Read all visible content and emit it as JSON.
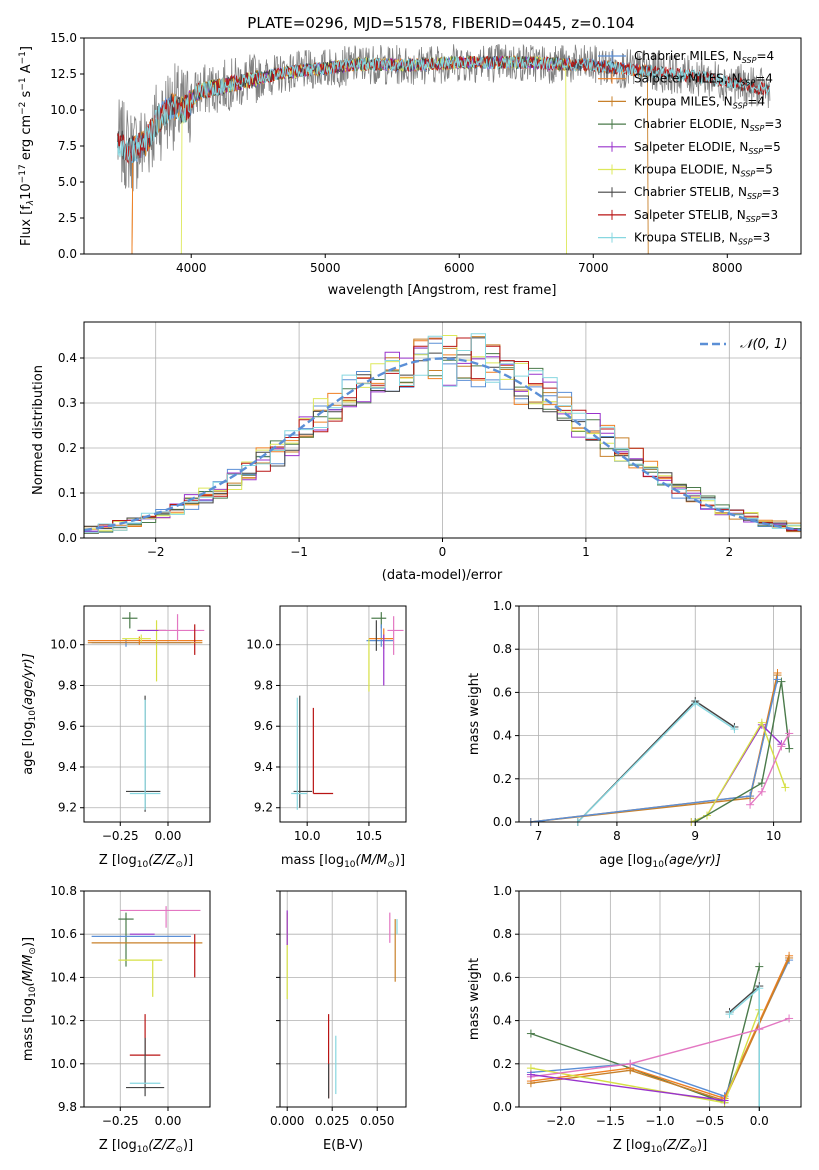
{
  "figure": {
    "title": "PLATE=0296, MJD=51578, FIBERID=0445, z=0.104"
  },
  "colors": {
    "Chabrier MILES": "#5b8fd6",
    "Salpeter MILES": "#f07f22",
    "Kroupa MILES": "#c8802a",
    "Chabrier ELODIE": "#4a7a4a",
    "Salpeter ELODIE": "#9933cc",
    "Kroupa ELODIE": "#dde85a",
    "Chabrier STELIB": "#444444",
    "Salpeter STELIB": "#b81414",
    "Kroupa STELIB": "#87d7e0",
    "Kroupa ELODIE mark": "#d6e045",
    "pink": "#e377c2",
    "data": "#808080"
  },
  "chart_data": [
    {
      "id": "spectrum",
      "type": "line",
      "title": "PLATE=0296, MJD=51578, FIBERID=0445, z=0.104",
      "xlabel": "wavelength [Angstrom, rest frame]",
      "ylabel": "Flux [f_λ10^-17 erg cm^-2 s^-1 A^-1]",
      "xlim": [
        3200,
        8550
      ],
      "ylim": [
        0,
        15
      ],
      "xticks": [
        4000,
        5000,
        6000,
        7000,
        8000
      ],
      "yticks": [
        0.0,
        2.5,
        5.0,
        7.5,
        10.0,
        12.5,
        15.0
      ],
      "grid": false,
      "legend_position": "right",
      "legend": [
        {
          "main": "Chabrier MILES, N",
          "sub": "SSP",
          "tail": "=4",
          "series": "Chabrier MILES"
        },
        {
          "main": "Salpeter MILES, N",
          "sub": "SSP",
          "tail": "=4",
          "series": "Salpeter MILES"
        },
        {
          "main": "Kroupa MILES, N",
          "sub": "SSP",
          "tail": "=4",
          "series": "Kroupa MILES"
        },
        {
          "main": "Chabrier ELODIE, N",
          "sub": "SSP",
          "tail": "=3",
          "series": "Chabrier ELODIE"
        },
        {
          "main": "Salpeter ELODIE, N",
          "sub": "SSP",
          "tail": "=5",
          "series": "Salpeter ELODIE"
        },
        {
          "main": "Kroupa ELODIE, N",
          "sub": "SSP",
          "tail": "=5",
          "series": "Kroupa ELODIE"
        },
        {
          "main": "Chabrier STELIB, N",
          "sub": "SSP",
          "tail": "=3",
          "series": "Chabrier STELIB"
        },
        {
          "main": "Salpeter STELIB, N",
          "sub": "SSP",
          "tail": "=3",
          "series": "Salpeter STELIB"
        },
        {
          "main": "Kroupa STELIB, N",
          "sub": "SSP",
          "tail": "=3",
          "series": "Kroupa STELIB"
        }
      ],
      "continuum": [
        [
          3450,
          7.8
        ],
        [
          3550,
          7.2
        ],
        [
          3650,
          7.6
        ],
        [
          3750,
          9.3
        ],
        [
          3850,
          10.3
        ],
        [
          3950,
          10.0
        ],
        [
          4050,
          11.3
        ],
        [
          4200,
          11.6
        ],
        [
          4400,
          12.0
        ],
        [
          4700,
          12.6
        ],
        [
          5000,
          12.9
        ],
        [
          5300,
          13.2
        ],
        [
          5600,
          13.1
        ],
        [
          6000,
          13.3
        ],
        [
          6500,
          13.3
        ],
        [
          7000,
          13.1
        ],
        [
          7400,
          12.7
        ],
        [
          7800,
          12.3
        ],
        [
          8100,
          11.8
        ],
        [
          8300,
          11.4
        ]
      ],
      "data_range": [
        3450,
        8320
      ]
    },
    {
      "id": "residuals",
      "type": "bar",
      "xlabel": "(data-model)/error",
      "ylabel": "Normed distribution",
      "xlim": [
        -2.5,
        2.5
      ],
      "ylim": [
        0,
        0.48
      ],
      "xticks": [
        -2,
        -1,
        0,
        1,
        2
      ],
      "yticks": [
        0.0,
        0.1,
        0.2,
        0.3,
        0.4
      ],
      "grid": true,
      "legend_position": "top-right",
      "legend": [
        {
          "label": "𝒩(0, 1)"
        }
      ]
    },
    {
      "id": "age-vs-Z",
      "type": "scatter",
      "xlabel": "Z [log10(Z/Z⊙)]",
      "ylabel": "age  [log10(age/yr)]",
      "xlim": [
        -0.44,
        0.22
      ],
      "ylim": [
        9.13,
        10.19
      ],
      "xticks": [
        -0.25,
        0.0
      ],
      "yticks": [
        9.2,
        9.4,
        9.6,
        9.8,
        10.0
      ],
      "grid": true
    },
    {
      "id": "age-vs-mass",
      "type": "scatter",
      "xlabel": "mass [log10(M/M⊙)]",
      "ylabel": "",
      "xlim": [
        9.78,
        10.8
      ],
      "ylim": [
        9.13,
        10.19
      ],
      "xticks": [
        10.0,
        10.5
      ],
      "yticks": [
        9.2,
        9.4,
        9.6,
        9.8,
        10.0
      ],
      "grid": true
    },
    {
      "id": "weight-vs-age",
      "type": "line",
      "xlabel": "age  [log10(age/yr)]",
      "ylabel": "mass weight",
      "xlim": [
        6.75,
        10.35
      ],
      "ylim": [
        0,
        1
      ],
      "xticks": [
        7,
        8,
        9,
        10
      ],
      "yticks": [
        0.0,
        0.2,
        0.4,
        0.6,
        0.8,
        1.0
      ],
      "grid": true
    },
    {
      "id": "mass-vs-Z",
      "type": "scatter",
      "xlabel": "Z [log10(Z/Z⊙)]",
      "ylabel": "mass [log10(M/M⊙)]",
      "xlim": [
        -0.44,
        0.22
      ],
      "ylim": [
        9.8,
        10.8
      ],
      "xticks": [
        -0.25,
        0.0
      ],
      "yticks": [
        9.8,
        10.0,
        10.2,
        10.4,
        10.6,
        10.8
      ],
      "grid": true
    },
    {
      "id": "mass-vs-ebv",
      "type": "scatter",
      "xlabel": "E(B-V)",
      "ylabel": "",
      "xlim": [
        -0.004,
        0.066
      ],
      "ylim": [
        9.8,
        10.8
      ],
      "xticks": [
        0.0,
        0.025,
        0.05
      ],
      "yticks": [
        9.8,
        10.0,
        10.2,
        10.4,
        10.6,
        10.8
      ],
      "grid": true
    },
    {
      "id": "weight-vs-Z",
      "type": "line",
      "xlabel": "Z [log10(Z/Z⊙)]",
      "ylabel": "mass weight",
      "xlim": [
        -2.42,
        0.42
      ],
      "ylim": [
        0,
        1
      ],
      "xticks": [
        -2.0,
        -1.5,
        -1.0,
        -0.5,
        0.0
      ],
      "yticks": [
        0.0,
        0.2,
        0.4,
        0.6,
        0.8,
        1.0
      ],
      "grid": true
    }
  ],
  "labels": {
    "spec_ylabel": {
      "a": "Flux [f",
      "b": "λ",
      "c": "10",
      "d": "−17",
      "e": " erg cm",
      "f": "−2",
      "g": " s",
      "h": "−1",
      "i": " A",
      "j": "−1",
      "k": "]"
    },
    "zlabel": {
      "a": "Z [log",
      "b": "10",
      "c": "(Z/Z",
      "d": "⊙",
      "e": ")]"
    },
    "masslabel": {
      "a": "mass [log",
      "b": "10",
      "c": "(M/M",
      "d": "⊙",
      "e": ")]"
    },
    "agelabel": {
      "a": "age  [log",
      "b": "10",
      "c": "(age/yr)]"
    },
    "masslabel_y": {
      "a": "mass [log",
      "b": "10",
      "c": "(M/M",
      "d": "⊙",
      "e": ")]"
    },
    "agelabel_y": {
      "a": "age  [log",
      "b": "10",
      "c": "(age/yr)]"
    }
  }
}
